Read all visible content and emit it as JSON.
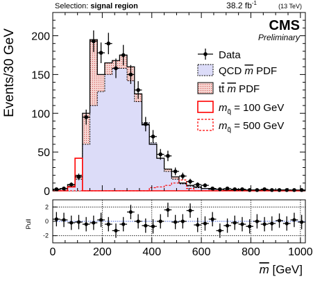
{
  "header": {
    "selection_prefix": "Selection: ",
    "selection_name": "signal region",
    "lumi_value": "38.2 fb",
    "lumi_exp": "-1",
    "lumi_energy": "(13 TeV)"
  },
  "labels": {
    "experiment": "CMS",
    "status": "Preliminary",
    "ylabel_main": "Events/30 GeV",
    "ylabel_pull": "Pull",
    "xlabel_symbol": "m",
    "xlabel_unit": "[GeV]"
  },
  "legend": {
    "data": "Data",
    "qcd_prefix": "QCD ",
    "qcd_suffix": " PDF",
    "ttbar_prefix": "t",
    "ttbar_bar": "t",
    "ttbar_suffix": " PDF",
    "sig_mass_symbol": "m",
    "sig_mass_sub": "q̃",
    "sig100_value": " = 100 GeV",
    "sig500_value": " = 500 GeV",
    "mbar": "m"
  },
  "colors": {
    "qcd_fill": "#dcdcf8",
    "ttbar_fill": "#f6d6d2",
    "ttbar_hatch": "#d05050",
    "signal": "#ff0000",
    "fit_line": "#3a5ad8"
  },
  "chart_data": [
    {
      "type": "histogram",
      "panel": "main",
      "xlabel": "m̄ [GeV]",
      "ylabel": "Events/30 GeV",
      "xlim": [
        0,
        1020
      ],
      "ylim": [
        0,
        230
      ],
      "x_ticks": [
        0,
        200,
        400,
        600,
        800,
        1000
      ],
      "y_ticks": [
        0,
        50,
        100,
        150,
        200
      ],
      "bin_width": 30,
      "bin_edges_start": 0,
      "series": [
        {
          "name": "Data",
          "kind": "points_with_errors",
          "x_centers": [
            15,
            45,
            75,
            105,
            135,
            165,
            195,
            225,
            255,
            285,
            315,
            345,
            375,
            405,
            435,
            465,
            495,
            525,
            555,
            585,
            615,
            645,
            675,
            705,
            735,
            765,
            795,
            825,
            855,
            885,
            915,
            945,
            975,
            1005
          ],
          "values": [
            2,
            3,
            8,
            18,
            95,
            193,
            178,
            190,
            158,
            175,
            150,
            130,
            86,
            70,
            47,
            45,
            25,
            19,
            12,
            8,
            7,
            3,
            2,
            3,
            2,
            2,
            1,
            1,
            2,
            1,
            1,
            1,
            1,
            1
          ],
          "errors": [
            1.4,
            1.7,
            2.8,
            4.2,
            9.7,
            13.9,
            13.3,
            13.8,
            12.6,
            13.2,
            12.2,
            11.4,
            9.3,
            8.4,
            6.9,
            6.7,
            5,
            4.4,
            3.5,
            2.8,
            2.6,
            1.7,
            1.4,
            1.7,
            1.4,
            1.4,
            1,
            1,
            1.4,
            1,
            1,
            1,
            1,
            1
          ]
        },
        {
          "name": "QCD m̄ PDF",
          "kind": "filled_step",
          "values": [
            1,
            2,
            6,
            15,
            60,
            110,
            128,
            150,
            158,
            158,
            142,
            115,
            88,
            62,
            42,
            25,
            15,
            9,
            6,
            4,
            3,
            2,
            2,
            1,
            1,
            1,
            1,
            1,
            1,
            1,
            1,
            1,
            0,
            0
          ]
        },
        {
          "name": "tt̄ m̄ PDF",
          "kind": "stacked_hatched_step",
          "values": [
            2,
            3,
            8,
            20,
            100,
            195,
            150,
            165,
            168,
            175,
            160,
            125,
            85,
            60,
            42,
            28,
            18,
            10,
            7,
            5,
            3,
            2,
            2,
            1,
            1,
            1,
            1,
            1,
            1,
            1,
            1,
            1,
            0,
            0
          ]
        },
        {
          "name": "m_q̃ = 100 GeV",
          "kind": "step_solid",
          "values": [
            0,
            0,
            5,
            42,
            0,
            0,
            0,
            0,
            0,
            0,
            0,
            0,
            0,
            0,
            0,
            0,
            0,
            0,
            0,
            0,
            0,
            0,
            0,
            0,
            0,
            0,
            0,
            0,
            0,
            0,
            0,
            0,
            0,
            0
          ]
        },
        {
          "name": "m_q̃ = 500 GeV",
          "kind": "step_dashed",
          "values": [
            0,
            0,
            0,
            0,
            0,
            0,
            0,
            0,
            0,
            0,
            0,
            0,
            0,
            4,
            5,
            7,
            10,
            14,
            3,
            0,
            0,
            0,
            0,
            0,
            0,
            0,
            0,
            0,
            0,
            0,
            0,
            0,
            0,
            0
          ]
        }
      ]
    },
    {
      "type": "scatter",
      "panel": "pull",
      "ylabel": "Pull",
      "ylim": [
        -3,
        3
      ],
      "y_ticks": [
        -2,
        0,
        2
      ],
      "x": [
        15,
        45,
        75,
        105,
        135,
        165,
        195,
        225,
        255,
        285,
        315,
        345,
        375,
        405,
        435,
        465,
        495,
        525,
        555,
        585,
        615,
        645,
        675,
        705,
        735,
        765,
        795,
        825,
        855,
        885,
        915,
        945,
        975,
        1005
      ],
      "values": [
        0.3,
        0.2,
        -0.2,
        -0.1,
        -0.4,
        -0.2,
        0.2,
        -0.4,
        -1.3,
        -0.4,
        1.3,
        0,
        -0.6,
        -0.7,
        0,
        1.6,
        -0.1,
        0,
        1.5,
        -0.5,
        -0.3,
        0.3,
        -1.3,
        -0.6,
        -0.2,
        -0.4,
        -0.7,
        0,
        -0.4,
        -0.3,
        0.1,
        -0.3,
        0.2,
        -0.1
      ],
      "errors": 1
    }
  ]
}
